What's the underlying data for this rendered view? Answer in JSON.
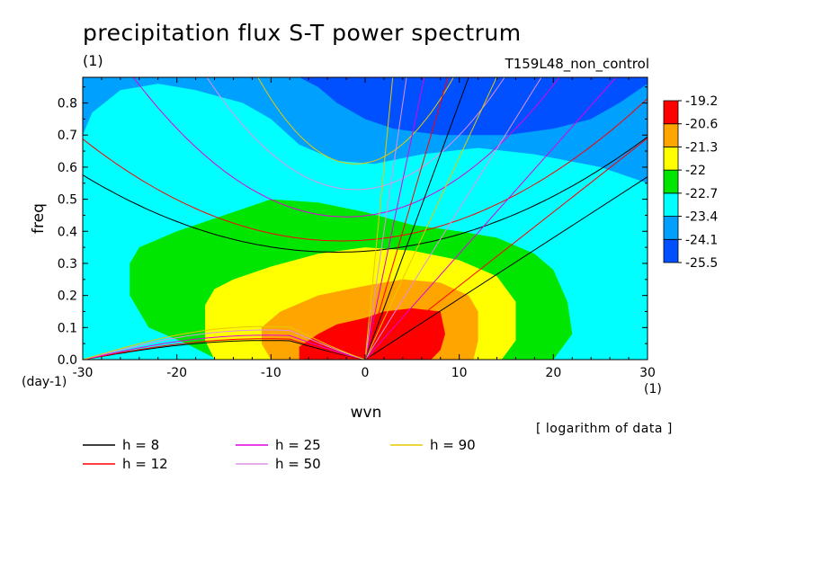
{
  "title": "precipitation flux S-T power spectrum",
  "title_units": "(1)",
  "run_name": "T159L48_non_control",
  "note": "[ logarithm of data ]",
  "chart_data": {
    "type": "heatmap",
    "xlabel": "wvn",
    "ylabel": "freq",
    "x_unit": "(1)",
    "y_unit": "(day-1)",
    "xlim": [
      -30,
      30
    ],
    "ylim": [
      0,
      0.88
    ],
    "xticks": [
      -30,
      -20,
      -10,
      0,
      10,
      20,
      30
    ],
    "xtick_labels": [
      "-30",
      "-20",
      "-10",
      "0",
      "10",
      "20",
      "30"
    ],
    "yticks": [
      0,
      0.1,
      0.2,
      0.3,
      0.4,
      0.5,
      0.6,
      0.7,
      0.8
    ],
    "ytick_labels": [
      "0.0",
      "0.1",
      "0.2",
      "0.3",
      "0.4",
      "0.5",
      "0.6",
      "0.7",
      "0.8"
    ],
    "colorbar": {
      "labels": [
        "-19.2",
        "-20.6",
        "-21.3",
        "-22",
        "-22.7",
        "-23.4",
        "-24.1",
        "-25.5"
      ],
      "colors": [
        "#0050ff",
        "#00a0ff",
        "#00ffff",
        "#00e600",
        "#ffff00",
        "#ffa500",
        "#ff0000"
      ]
    },
    "contour_levels": [
      {
        "level": "< -24.1",
        "color": "#0050ff"
      },
      {
        "level": "-24.1 to -23.4",
        "color": "#00a0ff"
      },
      {
        "level": "-23.4 to -22.7",
        "color": "#00ffff"
      },
      {
        "level": "-22.7 to -22",
        "color": "#00e600"
      },
      {
        "level": "-22 to -21.3",
        "color": "#ffff00"
      },
      {
        "level": "-21.3 to -20.6",
        "color": "#ffa500"
      },
      {
        "level": "> -20.6",
        "color": "#ff0000"
      }
    ],
    "dispersion_curves": [
      {
        "name": "h =  8",
        "h": 8,
        "color": "#000000"
      },
      {
        "name": "h = 12",
        "h": 12,
        "color": "#ff0000"
      },
      {
        "name": "h = 25",
        "h": 25,
        "color": "#e000e0"
      },
      {
        "name": "h = 50",
        "h": 50,
        "color": "#e090e0"
      },
      {
        "name": "h = 90",
        "h": 90,
        "color": "#e8c800"
      }
    ]
  }
}
